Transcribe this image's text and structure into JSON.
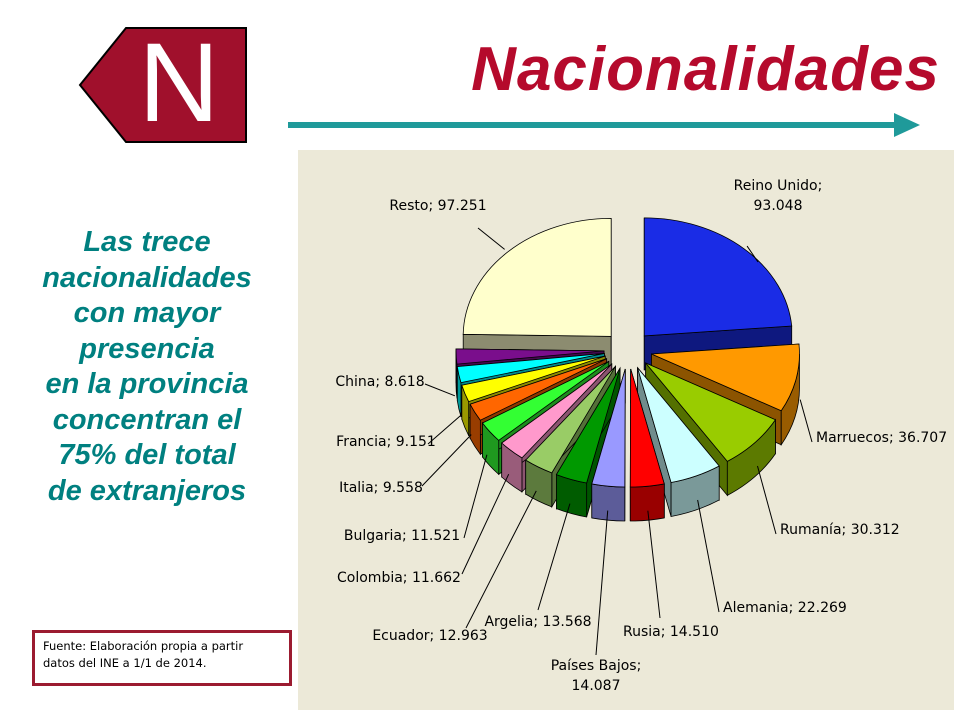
{
  "logo": {
    "letter": "N",
    "color": "#a0102c"
  },
  "title": "Nacionalidades",
  "side_text": {
    "lines": [
      "Las trece",
      "nacionalidades",
      "con mayor",
      "presencia",
      "en la provincia",
      "concentran el",
      "75% del total",
      "de extranjeros"
    ]
  },
  "source": {
    "lines": [
      "Fuente: Elaboración propia a partir",
      "datos del INE a 1/1 de 2014."
    ]
  },
  "colors": {
    "title": "#b50a2c",
    "side_text": "#008080",
    "arrow": "#1f9a9a",
    "chart_bg": "#ece9d8",
    "source_border": "#9b1b30"
  },
  "chart_data": {
    "type": "pie",
    "title": "",
    "slices": [
      {
        "label": "Reino Unido; 93.048",
        "label_lines": [
          "Reino Unido;",
          "93.048"
        ],
        "value": 93048,
        "color": "#1a2ce6"
      },
      {
        "label": "Marruecos; 36.707",
        "label_lines": [
          "Marruecos; 36.707"
        ],
        "value": 36707,
        "color": "#ff9900"
      },
      {
        "label": "Rumanía; 30.312",
        "label_lines": [
          "Rumanía; 30.312"
        ],
        "value": 30312,
        "color": "#99cc00"
      },
      {
        "label": "Alemania; 22.269",
        "label_lines": [
          "Alemania; 22.269"
        ],
        "value": 22269,
        "color": "#ccffff"
      },
      {
        "label": "Rusia; 14.510",
        "label_lines": [
          "Rusia; 14.510"
        ],
        "value": 14510,
        "color": "#ff0000"
      },
      {
        "label": "Países Bajos; 14.087",
        "label_lines": [
          "Países Bajos;",
          "14.087"
        ],
        "value": 14087,
        "color": "#9999ff"
      },
      {
        "label": "Argelia; 13.568",
        "label_lines": [
          "Argelia; 13.568"
        ],
        "value": 13568,
        "color": "#009900"
      },
      {
        "label": "Ecuador; 12.963",
        "label_lines": [
          "Ecuador; 12.963"
        ],
        "value": 12963,
        "color": "#99cc66"
      },
      {
        "label": "Colombia; 11.662",
        "label_lines": [
          "Colombia; 11.662"
        ],
        "value": 11662,
        "color": "#ff99cc"
      },
      {
        "label": "Bulgaria; 11.521",
        "label_lines": [
          "Bulgaria; 11.521"
        ],
        "value": 11521,
        "color": "#33ff33"
      },
      {
        "label": "Italia; 9.558",
        "label_lines": [
          "Italia; 9.558"
        ],
        "value": 9558,
        "color": "#ff6600"
      },
      {
        "label": "Francia; 9.151",
        "label_lines": [
          "Francia; 9.151"
        ],
        "value": 9151,
        "color": "#ffff00"
      },
      {
        "label": "China; 8.618",
        "label_lines": [
          "China; 8.618"
        ],
        "value": 8618,
        "color": "#00ffff"
      },
      {
        "label": "",
        "label_lines": [],
        "value": 8100,
        "color": "#7a0e8c"
      },
      {
        "label": "Resto; 97.251",
        "label_lines": [
          "Resto; 97.251"
        ],
        "value": 97251,
        "color": "#ffffcc"
      }
    ]
  }
}
